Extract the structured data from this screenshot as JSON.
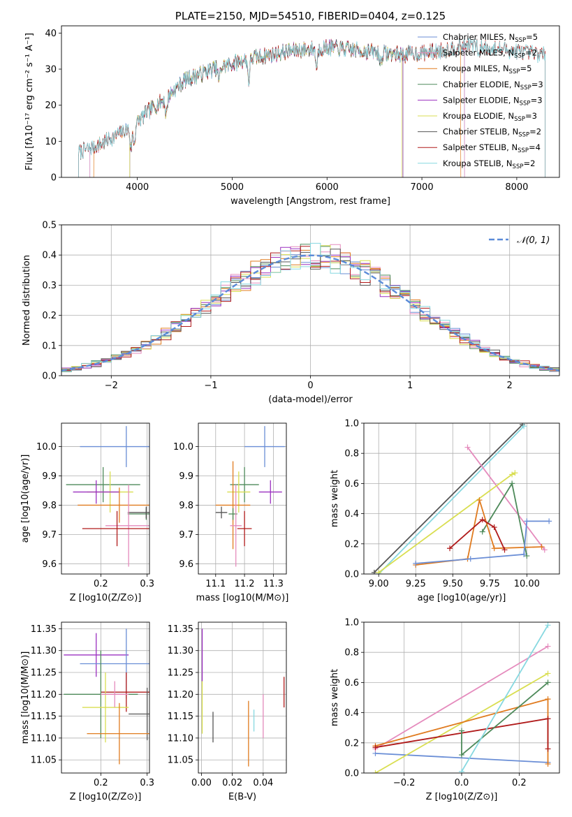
{
  "chart_data": [
    {
      "id": "spectrum",
      "type": "line",
      "title": "PLATE=2150, MJD=54510, FIBERID=0404, z=0.125",
      "xlabel": "wavelength [Angstrom, rest frame]",
      "ylabel": "Flux [fλ10⁻¹⁷ erg cm⁻² s⁻¹ A⁻¹]",
      "xlim": [
        3200,
        8450
      ],
      "ylim": [
        0,
        42
      ],
      "xticks": [
        4000,
        5000,
        6000,
        7000,
        8000
      ],
      "yticks": [
        0,
        10,
        20,
        30,
        40
      ],
      "grid": false,
      "legend_position": "top-right",
      "continuum_knots": {
        "x": [
          3380,
          3600,
          3800,
          3950,
          4100,
          4300,
          4500,
          4800,
          5200,
          5600,
          6000,
          6400,
          6800,
          7200,
          7500,
          7700,
          8000,
          8300
        ],
        "y": [
          7,
          9,
          12,
          14,
          18,
          22,
          27,
          30,
          33,
          35,
          36,
          35,
          34,
          35,
          37,
          36,
          35,
          34
        ]
      },
      "series": [
        {
          "name": "Chabrier MILES, N_SSP=5",
          "label_main": "Chabrier MILES, N",
          "label_sub": "SSP",
          "label_tail": "=5",
          "color": "#6a8ed6",
          "range": [
            3500,
            7450
          ]
        },
        {
          "name": "Salpeter MILES, N_SSP=2",
          "label_main": "Salpeter MILES, N",
          "label_sub": "SSP",
          "label_tail": "=2",
          "color": "#e58bbd",
          "range": [
            3500,
            7450
          ]
        },
        {
          "name": "Kroupa MILES, N_SSP=5",
          "label_main": "Kroupa MILES, N",
          "label_sub": "SSP",
          "label_tail": "=5",
          "color": "#e07b1f",
          "range": [
            3540,
            7410
          ]
        },
        {
          "name": "Chabrier ELODIE, N_SSP=3",
          "label_main": "Chabrier ELODIE, N",
          "label_sub": "SSP",
          "label_tail": "=3",
          "color": "#4e8a5a",
          "range": [
            3920,
            6800
          ]
        },
        {
          "name": "Salpeter ELODIE, N_SSP=3",
          "label_main": "Salpeter ELODIE, N",
          "label_sub": "SSP",
          "label_tail": "=3",
          "color": "#9b30c0",
          "range": [
            3920,
            6800
          ]
        },
        {
          "name": "Kroupa ELODIE, N_SSP=3",
          "label_main": "Kroupa ELODIE, N",
          "label_sub": "SSP",
          "label_tail": "=3",
          "color": "#d9de50",
          "range": [
            3920,
            6790
          ]
        },
        {
          "name": "Chabrier STELIB, N_SSP=2",
          "label_main": "Chabrier STELIB, N",
          "label_sub": "SSP",
          "label_tail": "=2",
          "color": "#555555",
          "range": [
            3380,
            8300
          ]
        },
        {
          "name": "Salpeter STELIB, N_SSP=4",
          "label_main": "Salpeter STELIB, N",
          "label_sub": "SSP",
          "label_tail": "=4",
          "color": "#b01a1a",
          "range": [
            3380,
            8300
          ]
        },
        {
          "name": "Kroupa STELIB, N_SSP=2",
          "label_main": "Kroupa STELIB, N",
          "label_sub": "SSP",
          "label_tail": "=2",
          "color": "#86d8e0",
          "range": [
            3380,
            8300
          ]
        }
      ]
    },
    {
      "id": "residuals",
      "type": "line",
      "xlabel": "(data-model)/error",
      "ylabel": "Normed distribution",
      "xlim": [
        -2.5,
        2.5
      ],
      "ylim": [
        0,
        0.5
      ],
      "xticks": [
        -2,
        -1,
        0,
        1,
        2
      ],
      "yticks": [
        0.0,
        0.1,
        0.2,
        0.3,
        0.4,
        0.5
      ],
      "grid": true,
      "legend_position": "top-right",
      "reference": {
        "name": "N(0,1)",
        "label": "𝒩(0, 1)",
        "color": "#5b8bd8",
        "mu": 0,
        "sigma": 1
      },
      "bin_width": 0.1
    },
    {
      "id": "age_vs_Z",
      "type": "scatter",
      "xlabel": "Z [log10(Z/Z⊙)]",
      "ylabel": "age [log10(age/yr)]",
      "xlim": [
        0.115,
        0.305
      ],
      "ylim": [
        9.565,
        10.08
      ],
      "xticks": [
        0.2,
        0.3
      ],
      "yticks": [
        9.6,
        9.7,
        9.8,
        9.9,
        10.0
      ],
      "grid": true,
      "points": [
        {
          "color": "#6a8ed6",
          "x": 0.255,
          "y": 10.0,
          "xerr": 0.1,
          "yerr": 0.07
        },
        {
          "color": "#4e8a5a",
          "x": 0.205,
          "y": 9.87,
          "xerr": 0.08,
          "yerr": 0.06
        },
        {
          "color": "#d9de50",
          "x": 0.22,
          "y": 9.845,
          "xerr": 0.05,
          "yerr": 0.07
        },
        {
          "color": "#9b30c0",
          "x": 0.19,
          "y": 9.845,
          "xerr": 0.05,
          "yerr": 0.04
        },
        {
          "color": "#e07b1f",
          "x": 0.24,
          "y": 9.8,
          "xerr": 0.09,
          "yerr": 0.06
        },
        {
          "color": "#4e8a5a",
          "x": 0.298,
          "y": 9.77,
          "xerr": 0.04,
          "yerr": 0.02
        },
        {
          "color": "#555555",
          "x": 0.298,
          "y": 9.775,
          "xerr": 0.04,
          "yerr": 0.02
        },
        {
          "color": "#e58bbd",
          "x": 0.26,
          "y": 9.73,
          "xerr": 0.05,
          "yerr": 0.14
        },
        {
          "color": "#b01a1a",
          "x": 0.235,
          "y": 9.72,
          "xerr": 0.075,
          "yerr": 0.06
        }
      ]
    },
    {
      "id": "age_vs_mass",
      "type": "scatter",
      "xlabel": "mass [log10(M/M⊙)]",
      "ylabel": "",
      "xlim": [
        11.04,
        11.345
      ],
      "ylim": [
        9.565,
        10.08
      ],
      "xticks": [
        11.1,
        11.2,
        11.3
      ],
      "yticks": [
        9.6,
        9.7,
        9.8,
        9.9,
        10.0
      ],
      "grid": true,
      "points": [
        {
          "color": "#6a8ed6",
          "x": 11.27,
          "y": 10.0,
          "xerr": 0.07,
          "yerr": 0.07
        },
        {
          "color": "#4e8a5a",
          "x": 11.2,
          "y": 9.87,
          "xerr": 0.05,
          "yerr": 0.06
        },
        {
          "color": "#d9de50",
          "x": 11.18,
          "y": 9.845,
          "xerr": 0.04,
          "yerr": 0.07
        },
        {
          "color": "#9b30c0",
          "x": 11.29,
          "y": 9.845,
          "xerr": 0.04,
          "yerr": 0.04
        },
        {
          "color": "#e07b1f",
          "x": 11.16,
          "y": 9.8,
          "xerr": 0.06,
          "yerr": 0.15
        },
        {
          "color": "#4e8a5a",
          "x": 11.16,
          "y": 9.77,
          "xerr": 0.015,
          "yerr": 0.02
        },
        {
          "color": "#555555",
          "x": 11.12,
          "y": 9.775,
          "xerr": 0.02,
          "yerr": 0.02
        },
        {
          "color": "#e58bbd",
          "x": 11.17,
          "y": 9.73,
          "xerr": 0.02,
          "yerr": 0.14
        },
        {
          "color": "#b01a1a",
          "x": 11.2,
          "y": 9.72,
          "xerr": 0.025,
          "yerr": 0.06
        }
      ]
    },
    {
      "id": "weight_vs_age",
      "type": "line",
      "xlabel": "age [log10(age/yr)]",
      "ylabel": "mass weight",
      "xlim": [
        8.9,
        10.22
      ],
      "ylim": [
        0,
        1
      ],
      "xticks": [
        9.0,
        9.25,
        9.5,
        9.75,
        10.0
      ],
      "yticks": [
        0.0,
        0.2,
        0.4,
        0.6,
        0.8,
        1.0
      ],
      "grid": true,
      "series": [
        {
          "color": "#555555",
          "x": [
            8.97,
            9.97
          ],
          "y": [
            0.01,
            0.99
          ]
        },
        {
          "color": "#86d8e0",
          "x": [
            9.0,
            9.98
          ],
          "y": [
            0.0,
            0.98
          ]
        },
        {
          "color": "#e58bbd",
          "x": [
            9.6,
            10.12
          ],
          "y": [
            0.84,
            0.16
          ]
        },
        {
          "color": "#d9de50",
          "x": [
            9.0,
            9.9,
            9.92
          ],
          "y": [
            0.01,
            0.66,
            0.67
          ]
        },
        {
          "color": "#4e8a5a",
          "x": [
            9.7,
            9.9,
            10.0
          ],
          "y": [
            0.28,
            0.6,
            0.12
          ]
        },
        {
          "color": "#e07b1f",
          "x": [
            9.25,
            9.6,
            9.68,
            9.78,
            10.1
          ],
          "y": [
            0.06,
            0.1,
            0.49,
            0.17,
            0.18
          ]
        },
        {
          "color": "#b01a1a",
          "x": [
            9.48,
            9.7,
            9.78,
            9.85
          ],
          "y": [
            0.17,
            0.36,
            0.31,
            0.16
          ]
        },
        {
          "color": "#6a8ed6",
          "x": [
            9.25,
            9.62,
            9.98,
            10.0,
            10.15
          ],
          "y": [
            0.07,
            0.1,
            0.13,
            0.35,
            0.35
          ]
        }
      ]
    },
    {
      "id": "mass_vs_Z",
      "type": "scatter",
      "xlabel": "Z [log10(Z/Z⊙)]",
      "ylabel": "mass [log10(M/M⊙)]",
      "xlim": [
        0.115,
        0.305
      ],
      "ylim": [
        11.02,
        11.365
      ],
      "xticks": [
        0.1,
        0.2,
        0.3
      ],
      "yticks": [
        11.05,
        11.1,
        11.15,
        11.2,
        11.25,
        11.3,
        11.35
      ],
      "grid": true,
      "points": [
        {
          "color": "#9b30c0",
          "x": 0.19,
          "y": 11.29,
          "xerr": 0.07,
          "yerr": 0.05
        },
        {
          "color": "#6a8ed6",
          "x": 0.255,
          "y": 11.27,
          "xerr": 0.1,
          "yerr": 0.08
        },
        {
          "color": "#b01a1a",
          "x": 0.255,
          "y": 11.205,
          "xerr": 0.055,
          "yerr": 0.045
        },
        {
          "color": "#4e8a5a",
          "x": 0.2,
          "y": 11.2,
          "xerr": 0.08,
          "yerr": 0.1
        },
        {
          "color": "#d9de50",
          "x": 0.21,
          "y": 11.17,
          "xerr": 0.05,
          "yerr": 0.08
        },
        {
          "color": "#555555",
          "x": 0.3,
          "y": 11.155,
          "xerr": 0.04,
          "yerr": 0.06
        },
        {
          "color": "#e07b1f",
          "x": 0.24,
          "y": 11.11,
          "xerr": 0.07,
          "yerr": 0.07
        },
        {
          "color": "#e58bbd",
          "x": 0.23,
          "y": 11.2,
          "xerr": 0.03,
          "yerr": 0.03
        }
      ]
    },
    {
      "id": "mass_vs_EBV",
      "type": "scatter",
      "xlabel": "E(B-V)",
      "ylabel": "",
      "xlim": [
        -0.002,
        0.055
      ],
      "ylim": [
        11.02,
        11.365
      ],
      "xticks": [
        0.0,
        0.02,
        0.04
      ],
      "yticks": [
        11.05,
        11.1,
        11.15,
        11.2,
        11.25,
        11.3,
        11.35
      ],
      "grid": true,
      "points": [
        {
          "color": "#9b30c0",
          "x": 0.0005,
          "y": 11.29,
          "xerr": 0.0,
          "yerr": 0.06
        },
        {
          "color": "#d9de50",
          "x": 0.0005,
          "y": 11.17,
          "xerr": 0.0,
          "yerr": 0.06
        },
        {
          "color": "#555555",
          "x": 0.0075,
          "y": 11.125,
          "xerr": 0.0,
          "yerr": 0.035
        },
        {
          "color": "#e07b1f",
          "x": 0.0305,
          "y": 11.11,
          "xerr": 0.0,
          "yerr": 0.075
        },
        {
          "color": "#86d8e0",
          "x": 0.034,
          "y": 11.14,
          "xerr": 0.0,
          "yerr": 0.025
        },
        {
          "color": "#e58bbd",
          "x": 0.04,
          "y": 11.15,
          "xerr": 0.0,
          "yerr": 0.05
        },
        {
          "color": "#b01a1a",
          "x": 0.0535,
          "y": 11.205,
          "xerr": 0.0,
          "yerr": 0.035
        }
      ]
    },
    {
      "id": "weight_vs_Z",
      "type": "line",
      "xlabel": "Z [log10(Z/Z⊙)]",
      "ylabel": "mass weight",
      "xlim": [
        -0.34,
        0.34
      ],
      "ylim": [
        0,
        1
      ],
      "xticks": [
        -0.2,
        0.0,
        0.2
      ],
      "yticks": [
        0.0,
        0.2,
        0.4,
        0.6,
        0.8,
        1.0
      ],
      "grid": true,
      "series": [
        {
          "color": "#6a8ed6",
          "x": [
            -0.3,
            0.3
          ],
          "y": [
            0.13,
            0.07
          ]
        },
        {
          "color": "#e58bbd",
          "x": [
            -0.3,
            0.3
          ],
          "y": [
            0.16,
            0.84
          ]
        },
        {
          "color": "#d9de50",
          "x": [
            -0.3,
            0.3
          ],
          "y": [
            0.0,
            0.66
          ]
        },
        {
          "color": "#e07b1f",
          "x": [
            -0.3,
            0.3,
            0.3
          ],
          "y": [
            0.18,
            0.49,
            0.06
          ]
        },
        {
          "color": "#b01a1a",
          "x": [
            -0.3,
            0.3,
            0.3
          ],
          "y": [
            0.17,
            0.36,
            0.16
          ]
        },
        {
          "color": "#4e8a5a",
          "x": [
            0.0,
            0.0,
            0.3
          ],
          "y": [
            0.28,
            0.12,
            0.6
          ]
        },
        {
          "color": "#86d8e0",
          "x": [
            0.0,
            0.3
          ],
          "y": [
            0.01,
            0.98
          ]
        }
      ]
    }
  ]
}
